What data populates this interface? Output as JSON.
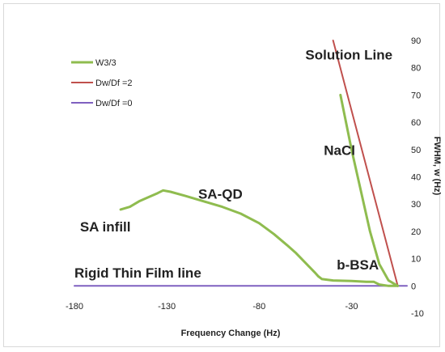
{
  "chart_data": {
    "type": "line",
    "title": "",
    "xlabel": "Frequency Change (Hz)",
    "ylabel": "FWHM, w (Hz)",
    "xlim": [
      -180,
      0
    ],
    "ylim": [
      -10,
      90
    ],
    "x_ticks": [
      "-180",
      "-130",
      "-80",
      "-30"
    ],
    "y_ticks": [
      "-10",
      "0",
      "10",
      "20",
      "30",
      "40",
      "50",
      "60",
      "70",
      "80",
      "90"
    ],
    "legend_position": "top-left",
    "series": [
      {
        "name": "W3/3",
        "color": "#8fbc4f",
        "points": [
          [
            -155,
            28
          ],
          [
            -150,
            29
          ],
          [
            -145,
            31
          ],
          [
            -140,
            32.5
          ],
          [
            -135,
            34
          ],
          [
            -132,
            35
          ],
          [
            -128,
            34.5
          ],
          [
            -120,
            33
          ],
          [
            -110,
            31
          ],
          [
            -100,
            29
          ],
          [
            -90,
            26.5
          ],
          [
            -80,
            23
          ],
          [
            -72,
            19
          ],
          [
            -65,
            15
          ],
          [
            -60,
            12
          ],
          [
            -55,
            8.5
          ],
          [
            -50,
            5
          ],
          [
            -48,
            3.5
          ],
          [
            -46,
            2.5
          ],
          [
            -40,
            2
          ],
          [
            -30,
            1.8
          ],
          [
            -22,
            1.5
          ],
          [
            -18,
            1.5
          ],
          [
            -15,
            0.5
          ],
          [
            -10,
            0
          ],
          [
            -5,
            0
          ]
        ]
      },
      {
        "name": "W3/3 (NaCl)",
        "color": "#8fbc4f",
        "points": [
          [
            -36,
            70
          ],
          [
            -30,
            50
          ],
          [
            -25,
            35
          ],
          [
            -20,
            20
          ],
          [
            -15,
            8
          ],
          [
            -10,
            2
          ],
          [
            -5,
            0
          ]
        ]
      },
      {
        "name": "Dw/Df =2",
        "color": "#c0504d",
        "points": [
          [
            -40,
            90
          ],
          [
            -5,
            0
          ]
        ]
      },
      {
        "name": "Dw/Df =0",
        "color": "#7f60c0",
        "points": [
          [
            -180,
            0
          ],
          [
            0,
            0
          ]
        ]
      }
    ],
    "annotations": [
      {
        "text": "Solution Line",
        "x": -55,
        "y": 83
      },
      {
        "text": "NaCl",
        "x": -45,
        "y": 48
      },
      {
        "text": "SA-QD",
        "x": -113,
        "y": 32
      },
      {
        "text": "SA infill",
        "x": -177,
        "y": 20
      },
      {
        "text": "b-BSA",
        "x": -38,
        "y": 6
      },
      {
        "text": "Rigid Thin Film line",
        "x": -180,
        "y": 3
      }
    ]
  }
}
